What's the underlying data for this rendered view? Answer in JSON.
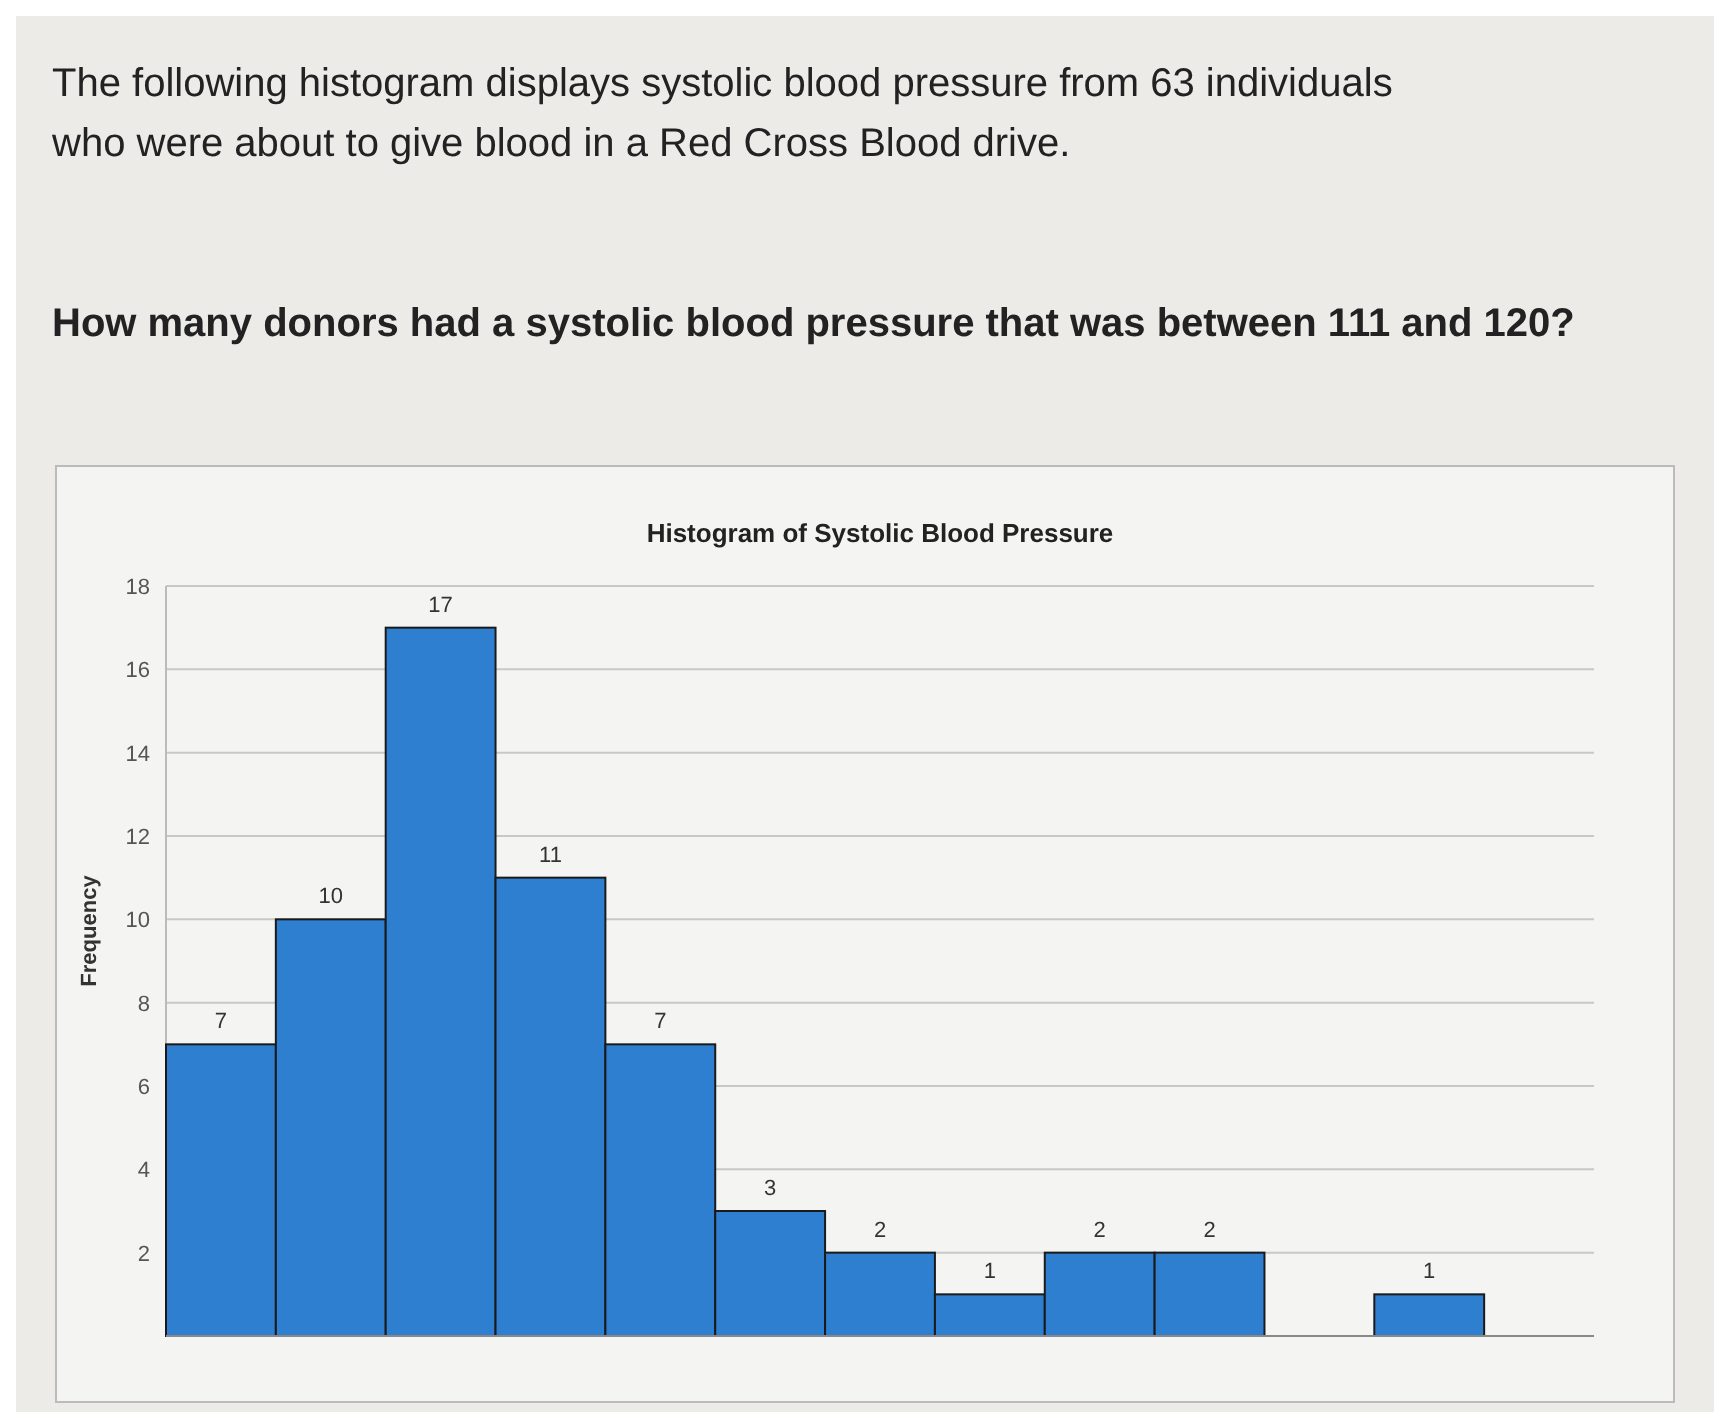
{
  "chart_data": {
    "type": "bar",
    "title": "Histogram of Systolic Blood Pressure",
    "ylabel": "Frequency",
    "annotations": [
      "The following histogram displays systolic blood pressure from 63 individuals who were about to give blood in a Red Cross Blood drive.",
      "How many donors had a systolic blood pressure that was between 111 and 120?"
    ],
    "categories": [
      null,
      null,
      null,
      null,
      null,
      null,
      null,
      null,
      null,
      null,
      null,
      null,
      null
    ],
    "values": [
      7,
      10,
      17,
      11,
      7,
      3,
      2,
      1,
      2,
      2,
      0,
      1,
      0
    ],
    "value_labels": [
      "7",
      "10",
      "17",
      "11",
      "7",
      "3",
      "2",
      "1",
      "2",
      "2",
      null,
      "1",
      null
    ],
    "color": "#2e7fd0",
    "ylim": [
      0,
      18
    ],
    "yticks": [
      2,
      4,
      6,
      8,
      10,
      12,
      14,
      16,
      18
    ],
    "grid": "y"
  }
}
